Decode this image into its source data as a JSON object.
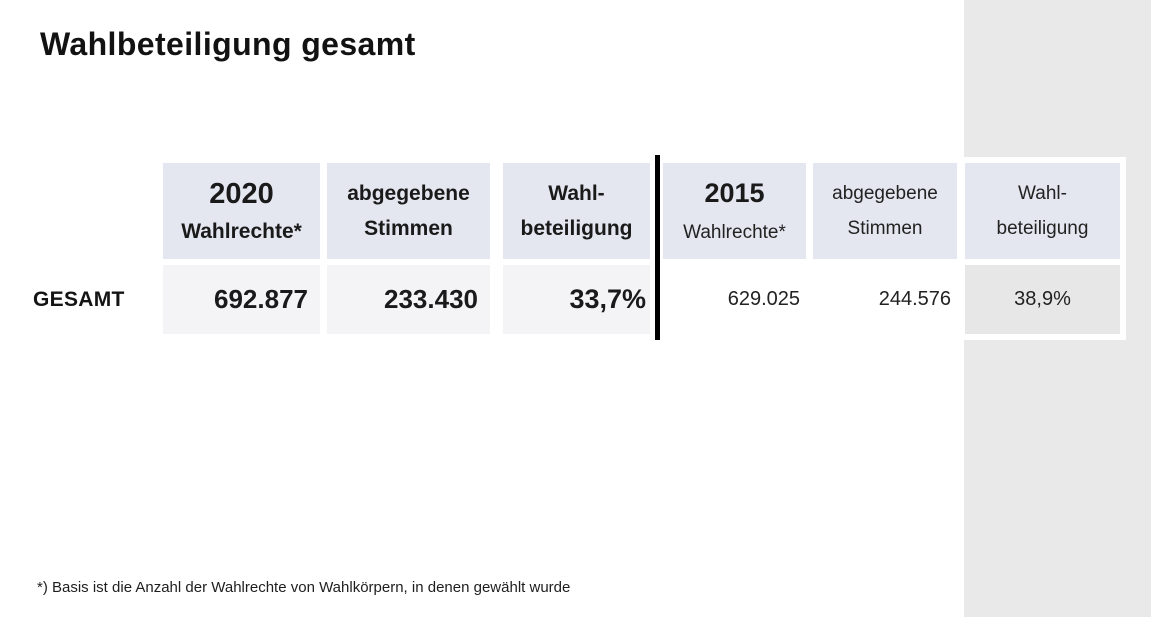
{
  "title": "Wahlbeteiligung gesamt",
  "row_label": "GESAMT",
  "footnote": "*) Basis ist die Anzahl der Wahlrechte von Wahlkörpern, in denen gewählt wurde",
  "colors": {
    "header_bg": "#e4e7f0",
    "data_cell_2020_bg": "#f4f4f7",
    "side_band_bg": "#e9e9e9",
    "pct_2015_cell_bg": "#e7e7e7",
    "divider": "#000000",
    "text": "#1a1a1a"
  },
  "columns": [
    {
      "group": "2020",
      "line1": "2020",
      "line2": "Wahlrechte*",
      "value": "692.877"
    },
    {
      "group": "2020",
      "line1": "abgegebene",
      "line2": "Stimmen",
      "value": "233.430"
    },
    {
      "group": "2020",
      "line1": "Wahl-",
      "line2": "beteiligung",
      "value": "33,7%"
    },
    {
      "group": "2015",
      "line1": "2015",
      "line2": "Wahlrechte*",
      "value": "629.025"
    },
    {
      "group": "2015",
      "line1": "abgegebene",
      "line2": "Stimmen",
      "value": "244.576"
    },
    {
      "group": "2015",
      "line1": "Wahl-",
      "line2": "beteiligung",
      "value": "38,9%"
    }
  ],
  "chart_data": {
    "type": "table",
    "title": "Wahlbeteiligung gesamt",
    "row_labels": [
      "GESAMT"
    ],
    "column_groups": [
      "2020",
      "2015"
    ],
    "column_headers": [
      "Wahlrechte*",
      "abgegebene Stimmen",
      "Wahlbeteiligung"
    ],
    "rows": [
      {
        "label": "GESAMT",
        "y2020": {
          "wahlrechte": 692877,
          "abgegebene_stimmen": 233430,
          "wahlbeteiligung_pct": 33.7
        },
        "y2015": {
          "wahlrechte": 629025,
          "abgegebene_stimmen": 244576,
          "wahlbeteiligung_pct": 38.9
        }
      }
    ],
    "footnote": "*) Basis ist die Anzahl der Wahlrechte von Wahlkörpern, in denen gewählt wurde"
  }
}
